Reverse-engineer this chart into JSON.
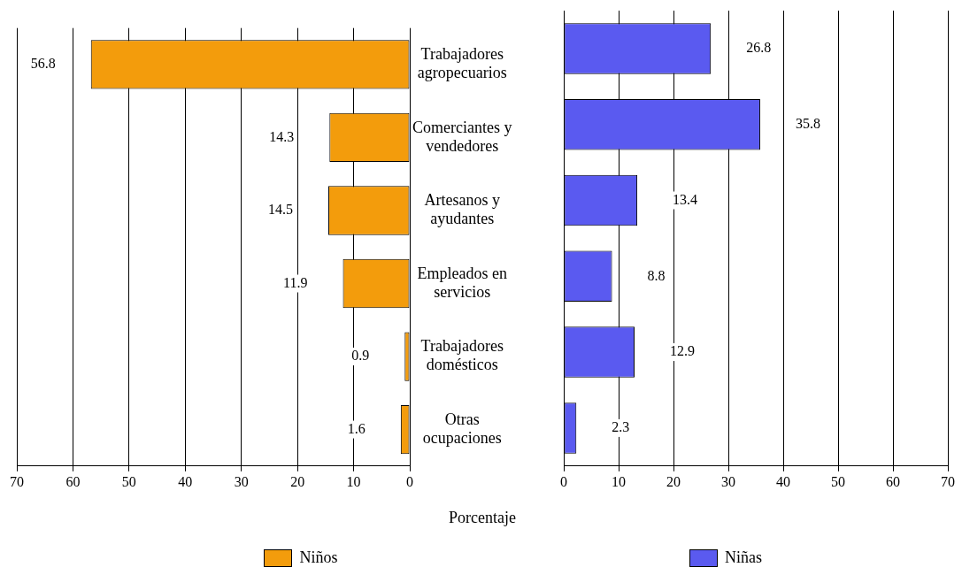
{
  "chart_data": [
    {
      "type": "bar",
      "orientation": "horizontal",
      "categories": [
        "Trabajadores agropecuarios",
        "Comerciantes y vendedores",
        "Artesanos y ayudantes",
        "Empleados en servicios",
        "Trabajadores domésticos",
        "Otras ocupaciones"
      ],
      "xlabel": "Porcentaje",
      "series": [
        {
          "name": "Niños",
          "color": "#f39c0c",
          "values": [
            56.8,
            14.3,
            14.5,
            11.9,
            0.9,
            1.6
          ]
        }
      ],
      "xlim": [
        70,
        0
      ],
      "xticks": [
        70,
        60,
        50,
        40,
        30,
        20,
        10,
        0
      ],
      "grid": "x",
      "legend": "bottom",
      "data_labels": true
    },
    {
      "type": "bar",
      "orientation": "horizontal",
      "series": [
        {
          "name": "Niñas",
          "color": "#5a5af0",
          "values": [
            26.8,
            35.8,
            13.4,
            8.8,
            12.9,
            2.3
          ]
        }
      ],
      "xlim": [
        0,
        70
      ],
      "xticks": [
        0,
        10,
        20,
        30,
        40,
        50,
        60,
        70
      ],
      "grid": "x",
      "legend": "bottom",
      "data_labels": true
    }
  ]
}
